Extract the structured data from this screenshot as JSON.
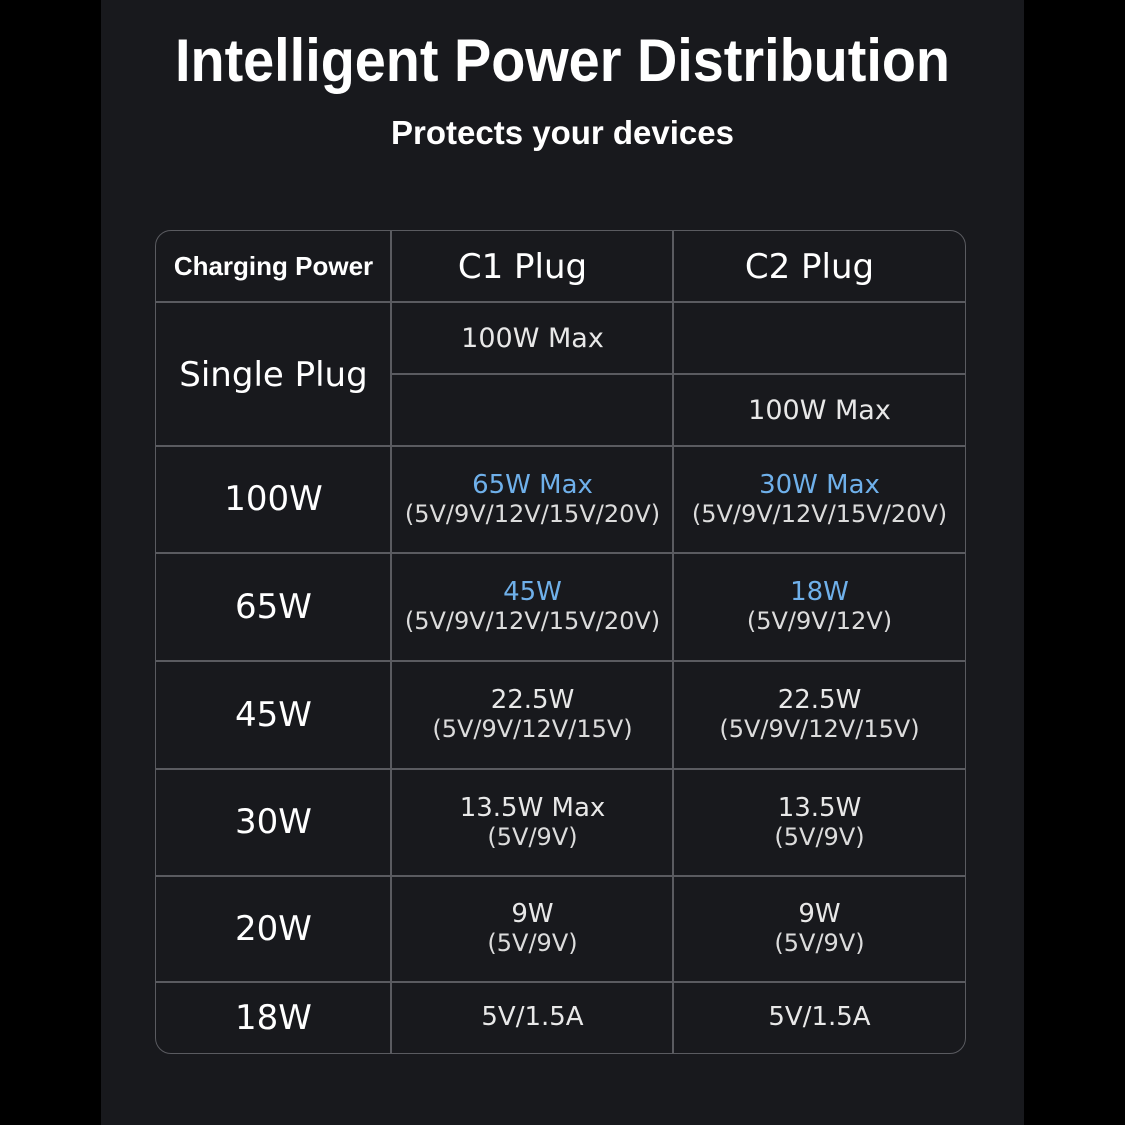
{
  "title": "Intelligent Power Distribution",
  "subtitle": "Protects your devices",
  "colors": {
    "background": "#18191d",
    "accent": "#6fb0ea",
    "grid": "#5a5b60"
  },
  "table": {
    "headers": [
      "Charging Power",
      "C1 Plug",
      "C2 Plug"
    ],
    "single": {
      "label": "Single Plug",
      "c1": "100W Max",
      "c2": "100W Max"
    },
    "rows": [
      {
        "label": "100W",
        "c1": {
          "main": "65W Max",
          "sub": "(5V/9V/12V/15V/20V)",
          "accent": true
        },
        "c2": {
          "main": "30W Max",
          "sub": "(5V/9V/12V/15V/20V)",
          "accent": true
        }
      },
      {
        "label": "65W",
        "c1": {
          "main": "45W",
          "sub": "(5V/9V/12V/15V/20V)",
          "accent": true
        },
        "c2": {
          "main": "18W",
          "sub": "(5V/9V/12V)",
          "accent": true
        }
      },
      {
        "label": "45W",
        "c1": {
          "main": "22.5W",
          "sub": "(5V/9V/12V/15V)"
        },
        "c2": {
          "main": "22.5W",
          "sub": "(5V/9V/12V/15V)"
        }
      },
      {
        "label": "30W",
        "c1": {
          "main": "13.5W Max",
          "sub": "(5V/9V)"
        },
        "c2": {
          "main": "13.5W",
          "sub": "(5V/9V)"
        }
      },
      {
        "label": "20W",
        "c1": {
          "main": "9W",
          "sub": "(5V/9V)"
        },
        "c2": {
          "main": "9W",
          "sub": "(5V/9V)"
        }
      },
      {
        "label": "18W",
        "c1": {
          "main": "5V/1.5A"
        },
        "c2": {
          "main": "5V/1.5A"
        }
      }
    ]
  }
}
